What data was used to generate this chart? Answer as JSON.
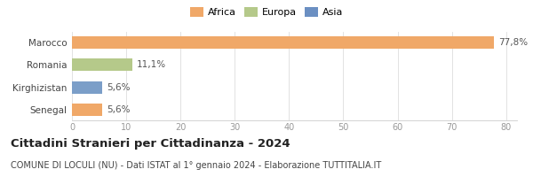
{
  "categories": [
    "Senegal",
    "Kirghizistan",
    "Romania",
    "Marocco"
  ],
  "values": [
    5.6,
    5.6,
    11.1,
    77.8
  ],
  "labels": [
    "5,6%",
    "5,6%",
    "11,1%",
    "77,8%"
  ],
  "colors": [
    "#f0a868",
    "#7b9ec8",
    "#b5c98a",
    "#f0a868"
  ],
  "legend": [
    {
      "label": "Africa",
      "color": "#f0a868"
    },
    {
      "label": "Europa",
      "color": "#b5c98a"
    },
    {
      "label": "Asia",
      "color": "#6b8fc2"
    }
  ],
  "xlim": [
    0,
    82
  ],
  "xticks": [
    0,
    10,
    20,
    30,
    40,
    50,
    60,
    70,
    80
  ],
  "title": "Cittadini Stranieri per Cittadinanza - 2024",
  "subtitle": "COMUNE DI LOCULI (NU) - Dati ISTAT al 1° gennaio 2024 - Elaborazione TUTTITALIA.IT",
  "bg_color": "#ffffff",
  "bar_height": 0.55,
  "label_fontsize": 7.5,
  "title_fontsize": 9.5,
  "subtitle_fontsize": 7,
  "tick_fontsize": 7,
  "ytick_fontsize": 7.5,
  "legend_fontsize": 8
}
